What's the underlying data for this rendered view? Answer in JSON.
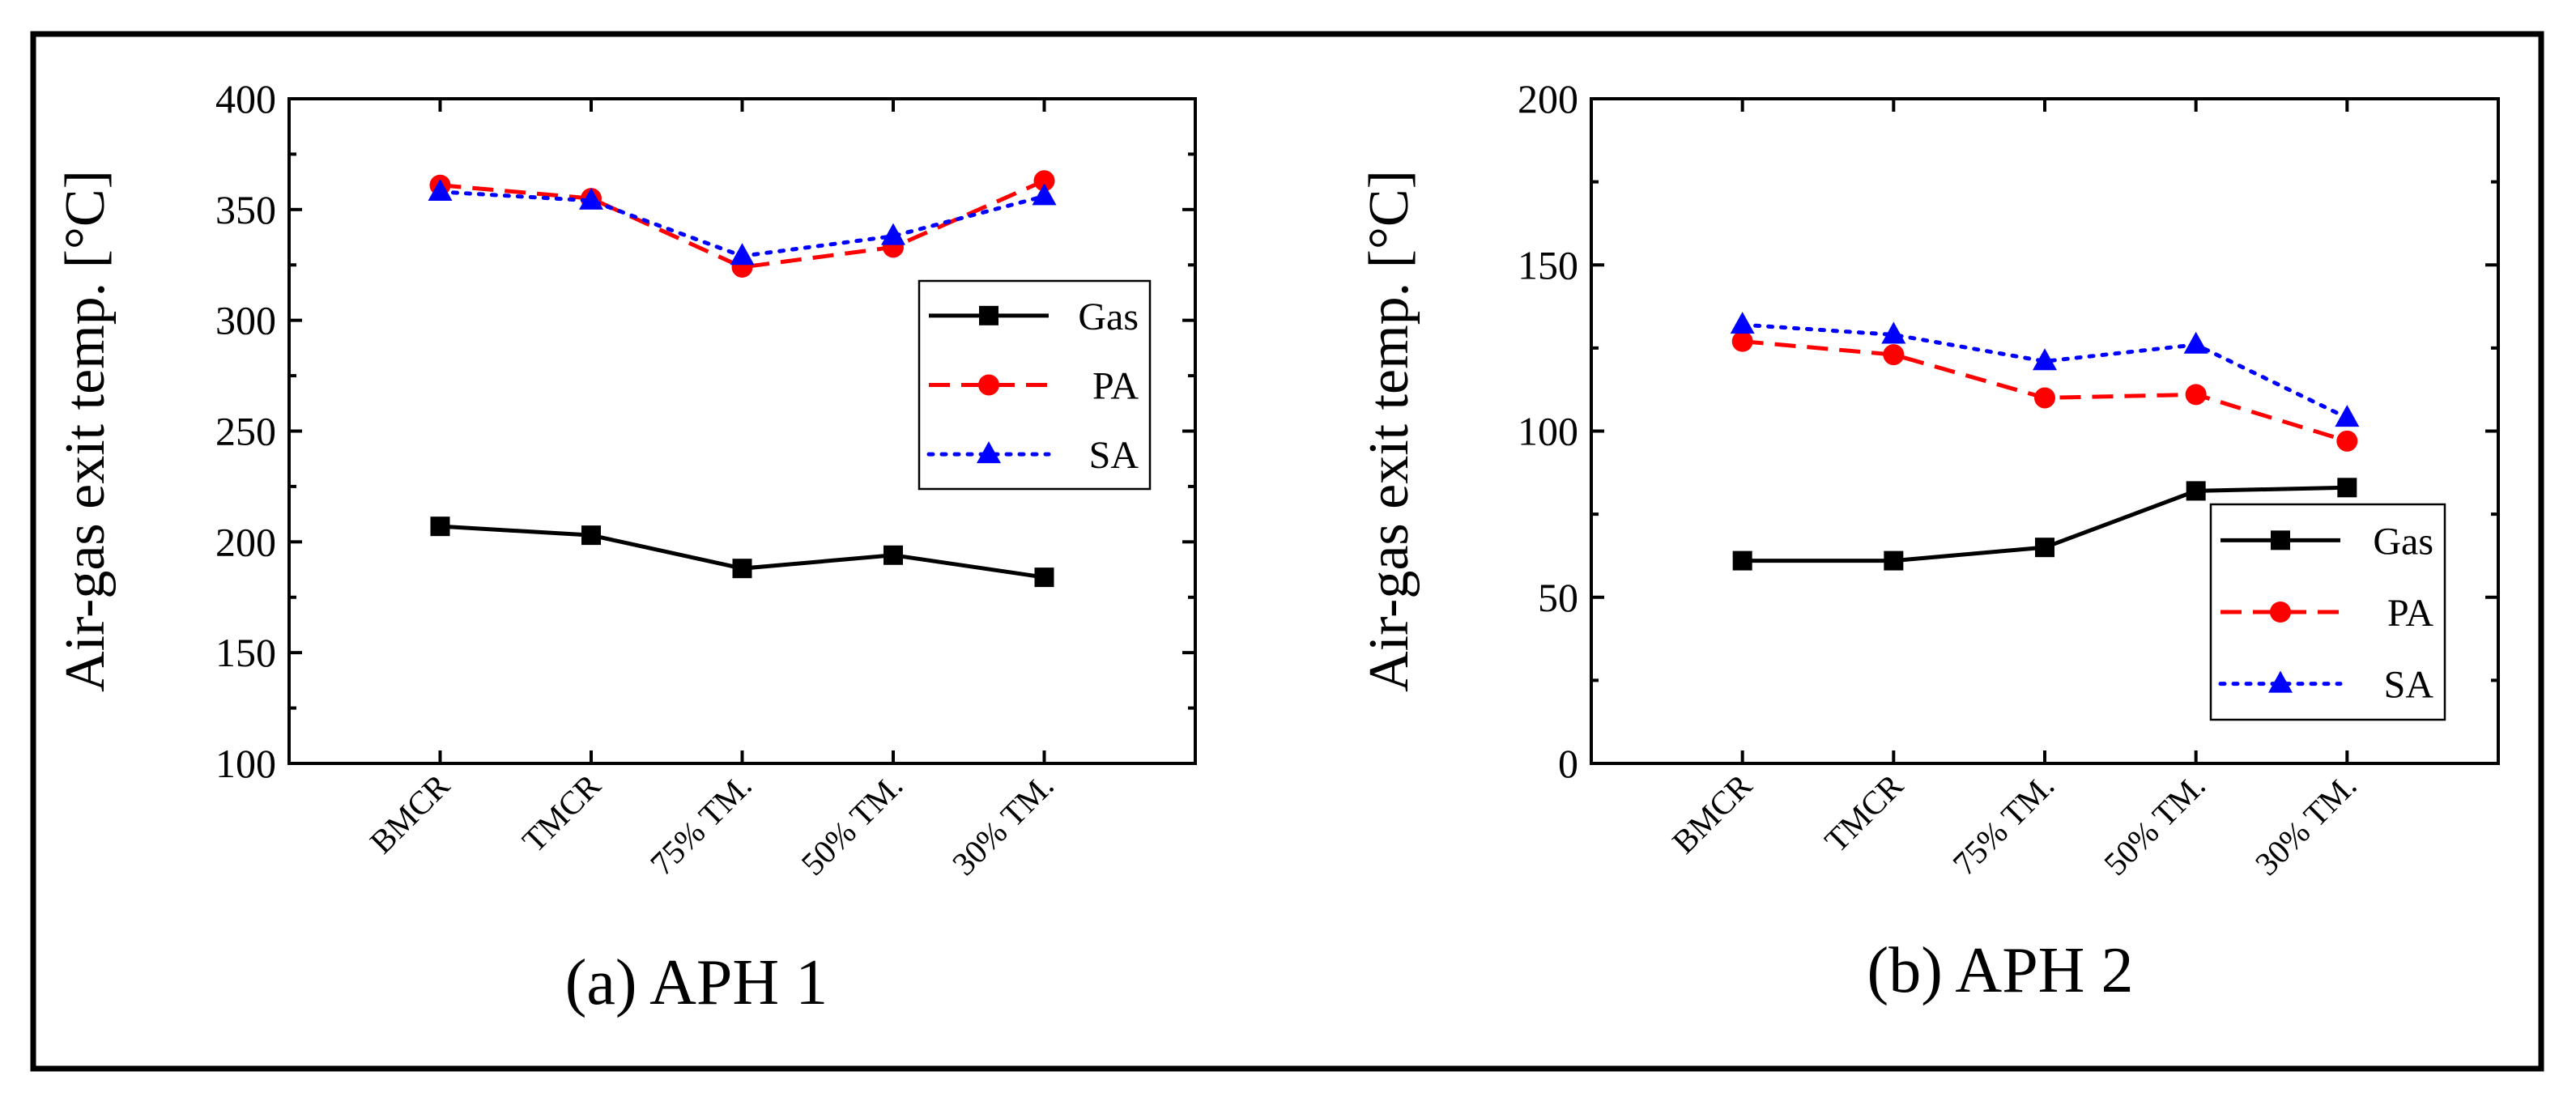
{
  "chart_data": [
    {
      "type": "line",
      "title": "",
      "caption": "(a) APH 1",
      "xlabel": "",
      "ylabel": "Air-gas exit temp. [°C]",
      "categories": [
        "BMCR",
        "TMCR",
        "75% TM.",
        "50% TM.",
        "30% TM."
      ],
      "ylim": [
        100,
        400
      ],
      "yticks": [
        100,
        150,
        200,
        250,
        300,
        350,
        400
      ],
      "grid": false,
      "legend_position": "center-right",
      "series": [
        {
          "name": "Gas",
          "color": "#000000",
          "dash": "solid",
          "marker": "square",
          "values": [
            207,
            203,
            188,
            194,
            184
          ]
        },
        {
          "name": "PA",
          "color": "#ff0000",
          "dash": "dashed",
          "marker": "circle",
          "values": [
            361,
            355,
            324,
            333,
            363
          ]
        },
        {
          "name": "SA",
          "color": "#0000ff",
          "dash": "dotted",
          "marker": "triangle",
          "values": [
            358,
            354,
            329,
            338,
            356
          ]
        }
      ]
    },
    {
      "type": "line",
      "title": "",
      "caption": "(b) APH 2",
      "xlabel": "",
      "ylabel": "Air-gas exit temp. [°C]",
      "categories": [
        "BMCR",
        "TMCR",
        "75% TM.",
        "50% TM.",
        "30% TM."
      ],
      "ylim": [
        0,
        200
      ],
      "yticks": [
        0,
        50,
        100,
        150,
        200
      ],
      "grid": false,
      "legend_position": "bottom-right",
      "series": [
        {
          "name": "Gas",
          "color": "#000000",
          "dash": "solid",
          "marker": "square",
          "values": [
            61,
            61,
            65,
            82,
            83
          ]
        },
        {
          "name": "PA",
          "color": "#ff0000",
          "dash": "dashed",
          "marker": "circle",
          "values": [
            127,
            123,
            110,
            111,
            97
          ]
        },
        {
          "name": "SA",
          "color": "#0000ff",
          "dash": "dotted",
          "marker": "triangle",
          "values": [
            132,
            129,
            121,
            126,
            104
          ]
        }
      ]
    }
  ]
}
